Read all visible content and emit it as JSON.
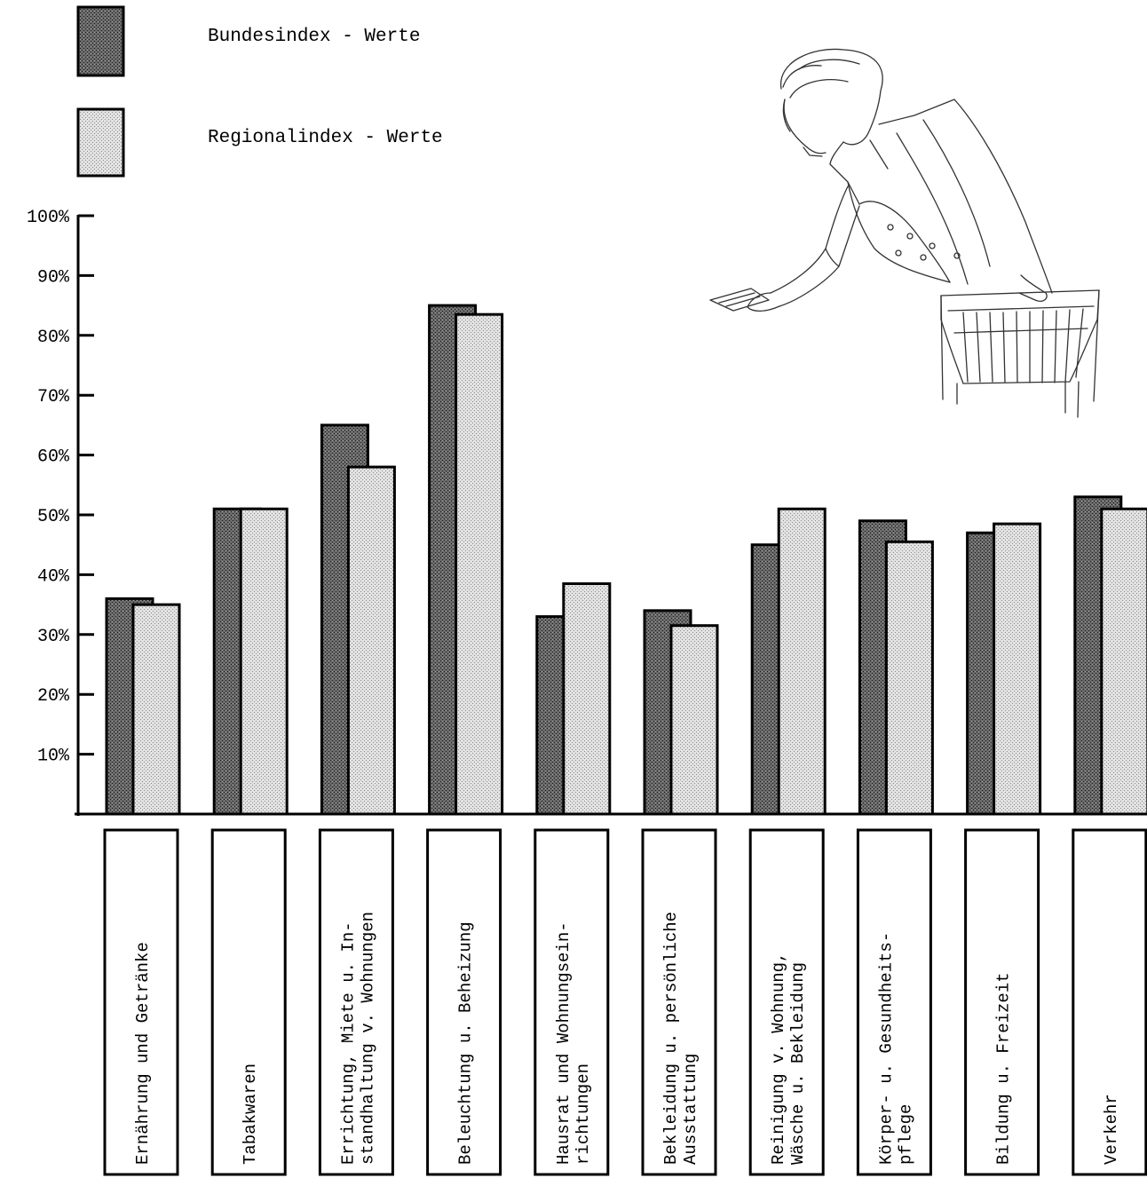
{
  "chart_data": {
    "type": "bar",
    "title": "",
    "xlabel": "",
    "ylabel": "",
    "ylim": [
      0,
      100
    ],
    "y_ticks": [
      "10%",
      "20%",
      "30%",
      "40%",
      "50%",
      "60%",
      "70%",
      "80%",
      "90%",
      "100%"
    ],
    "categories": [
      [
        "Ernährung und Getränke"
      ],
      [
        "Tabakwaren"
      ],
      [
        "Errichtung, Miete u. In-",
        "standhaltung v. Wohnungen"
      ],
      [
        "Beleuchtung u. Beheizung"
      ],
      [
        "Hausrat und Wohnungsein-",
        "richtungen"
      ],
      [
        "Bekleidung u. persönliche",
        "Ausstattung"
      ],
      [
        "Reinigung v. Wohnung,",
        "Wäsche u. Bekleidung"
      ],
      [
        "Körper- u. Gesundheits-",
        "pflege"
      ],
      [
        "Bildung u. Freizeit"
      ],
      [
        "Verkehr"
      ]
    ],
    "series": [
      {
        "name": "Bundesindex - Werte",
        "color": "#555555",
        "values": [
          36,
          51,
          65,
          85,
          33,
          34,
          45,
          49,
          47,
          53
        ]
      },
      {
        "name": "Regionalindex - Werte",
        "color": "#cfcfcf",
        "values": [
          35,
          51,
          58,
          83.5,
          38.5,
          31.5,
          51,
          45.5,
          48.5,
          51
        ]
      }
    ],
    "legend_position": "top-left",
    "grid": false
  },
  "illustration": {
    "icon": "shopper-with-basket-icon"
  }
}
